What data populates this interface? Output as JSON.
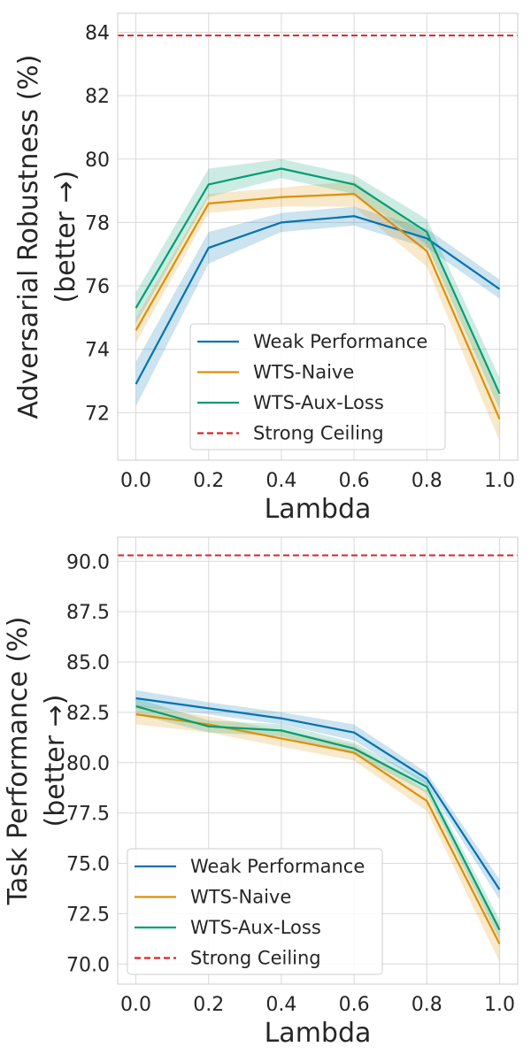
{
  "chart_data": [
    {
      "type": "line",
      "xlabel": "Lambda",
      "ylabel_line1": "Adversarial Robustness (%)",
      "ylabel_line2": "(better →)",
      "x": [
        0.0,
        0.2,
        0.4,
        0.6,
        0.8,
        1.0
      ],
      "xticks": [
        0.0,
        0.2,
        0.4,
        0.6,
        0.8,
        1.0
      ],
      "xtick_labels": [
        "0.0",
        "0.2",
        "0.4",
        "0.6",
        "0.8",
        "1.0"
      ],
      "xlim": [
        -0.05,
        1.05
      ],
      "ylim": [
        70.5,
        84.6
      ],
      "yticks": [
        72,
        74,
        76,
        78,
        80,
        82,
        84
      ],
      "ytick_labels": [
        "72",
        "74",
        "76",
        "78",
        "80",
        "82",
        "84"
      ],
      "grid": true,
      "legend_position": "lower-center",
      "series": [
        {
          "name": "Weak Performance",
          "color": "#0173b2",
          "values": [
            72.9,
            77.2,
            78.0,
            78.2,
            77.5,
            75.9
          ],
          "lower": [
            72.2,
            76.7,
            77.7,
            77.9,
            77.2,
            75.6
          ],
          "upper": [
            73.6,
            77.7,
            78.3,
            78.5,
            77.8,
            76.2
          ]
        },
        {
          "name": "WTS-Naive",
          "color": "#de8f05",
          "values": [
            74.6,
            78.6,
            78.8,
            78.9,
            77.1,
            71.8
          ],
          "lower": [
            74.2,
            78.3,
            78.5,
            78.5,
            76.6,
            71.1
          ],
          "upper": [
            75.0,
            78.9,
            79.1,
            79.3,
            77.6,
            72.5
          ]
        },
        {
          "name": "WTS-Aux-Loss",
          "color": "#029e73",
          "values": [
            75.3,
            79.2,
            79.7,
            79.2,
            77.7,
            72.6
          ],
          "lower": [
            74.8,
            78.8,
            79.4,
            78.9,
            77.3,
            72.1
          ],
          "upper": [
            75.8,
            79.7,
            80.0,
            79.5,
            78.1,
            73.1
          ]
        }
      ],
      "reference_line": {
        "name": "Strong Ceiling",
        "value": 83.9,
        "color": "#d62728"
      }
    },
    {
      "type": "line",
      "xlabel": "Lambda",
      "ylabel_line1": "Task Performance (%)",
      "ylabel_line2": "(better →)",
      "x": [
        0.0,
        0.2,
        0.4,
        0.6,
        0.8,
        1.0
      ],
      "xticks": [
        0.0,
        0.2,
        0.4,
        0.6,
        0.8,
        1.0
      ],
      "xtick_labels": [
        "0.0",
        "0.2",
        "0.4",
        "0.6",
        "0.8",
        "1.0"
      ],
      "xlim": [
        -0.05,
        1.05
      ],
      "ylim": [
        69.0,
        91.2
      ],
      "yticks": [
        70.0,
        72.5,
        75.0,
        77.5,
        80.0,
        82.5,
        85.0,
        87.5,
        90.0
      ],
      "ytick_labels": [
        "70.0",
        "72.5",
        "75.0",
        "77.5",
        "80.0",
        "82.5",
        "85.0",
        "87.5",
        "90.0"
      ],
      "grid": true,
      "legend_position": "lower-left",
      "series": [
        {
          "name": "Weak Performance",
          "color": "#0173b2",
          "values": [
            83.2,
            82.7,
            82.2,
            81.5,
            79.2,
            73.7
          ],
          "lower": [
            82.8,
            82.4,
            81.9,
            81.1,
            78.9,
            73.2
          ],
          "upper": [
            83.6,
            83.0,
            82.5,
            81.9,
            79.5,
            74.2
          ]
        },
        {
          "name": "WTS-Naive",
          "color": "#de8f05",
          "values": [
            82.4,
            81.9,
            81.2,
            80.5,
            78.1,
            71.0
          ],
          "lower": [
            81.9,
            81.5,
            80.8,
            80.1,
            77.6,
            70.1
          ],
          "upper": [
            82.9,
            82.3,
            81.6,
            80.9,
            78.6,
            71.9
          ]
        },
        {
          "name": "WTS-Aux-Loss",
          "color": "#029e73",
          "values": [
            82.8,
            81.8,
            81.6,
            80.7,
            78.8,
            71.7
          ],
          "lower": [
            82.4,
            81.5,
            81.3,
            80.4,
            78.5,
            71.2
          ],
          "upper": [
            83.2,
            82.1,
            81.9,
            81.0,
            79.1,
            72.2
          ]
        }
      ],
      "reference_line": {
        "name": "Strong Ceiling",
        "value": 90.3,
        "color": "#d62728"
      }
    }
  ]
}
